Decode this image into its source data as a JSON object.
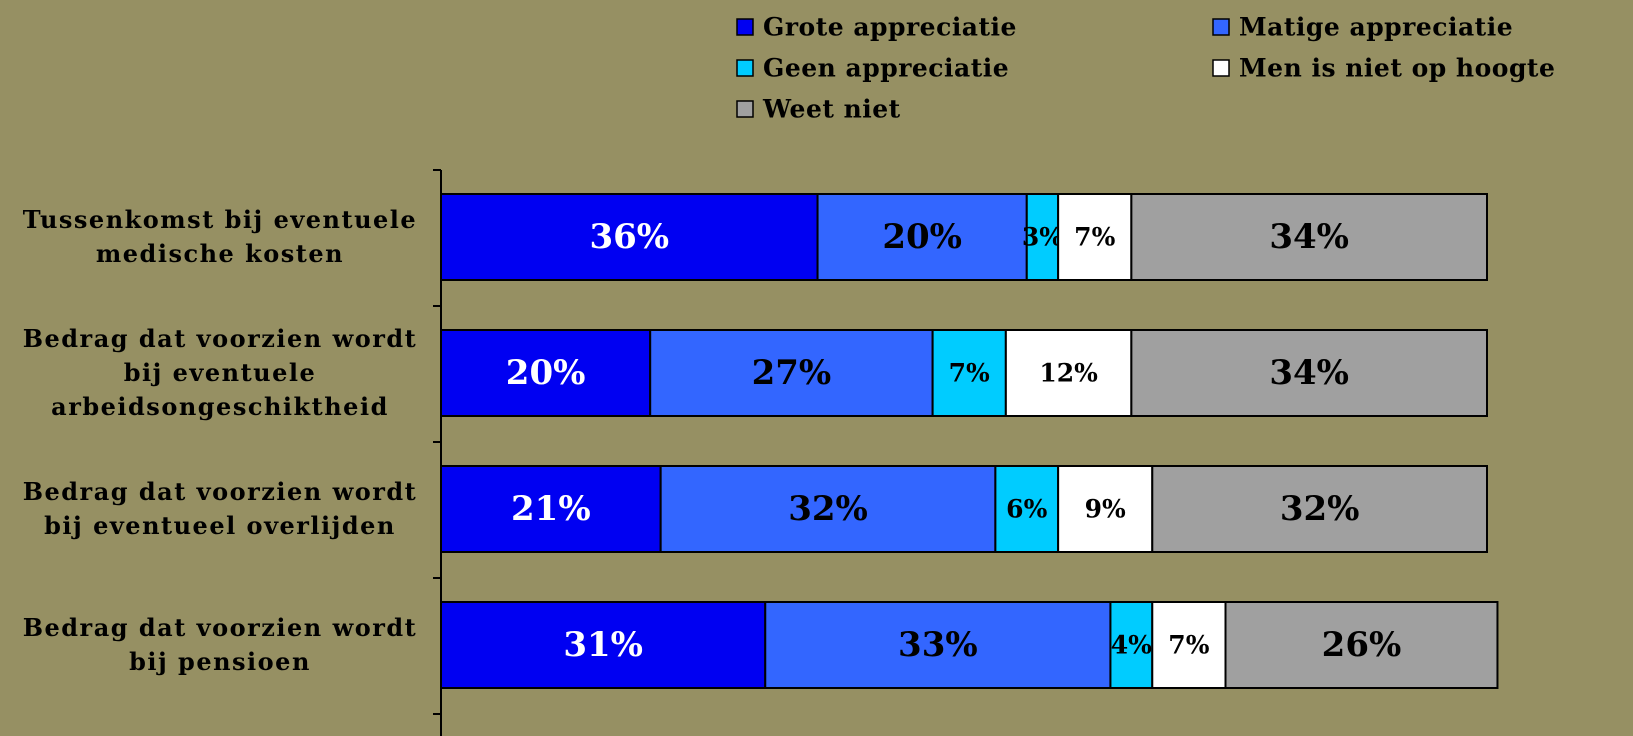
{
  "chart_data": {
    "type": "stacked-barh",
    "categories": [
      "Tussenkomst bij eventuele medische kosten",
      "Bedrag dat voorzien wordt bij eventuele arbeidsongeschiktheid",
      "Bedrag dat voorzien wordt bij eventueel overlijden",
      "Bedrag dat voorzien wordt bij pensioen"
    ],
    "xlim": [
      0,
      100
    ],
    "series": [
      {
        "name": "Grote appreciatie",
        "color": "#0000f2",
        "label_color": "#ffffff",
        "values": [
          36,
          20,
          21,
          31
        ],
        "value_labels": [
          "36%",
          "20%",
          "21%",
          "31%"
        ]
      },
      {
        "name": "Matige appreciatie",
        "color": "#3366ff",
        "label_color": "#000000",
        "values": [
          20,
          27,
          32,
          33
        ],
        "value_labels": [
          "20%",
          "27%",
          "32%",
          "33%"
        ]
      },
      {
        "name": "Geen appreciatie",
        "color": "#00ccff",
        "label_color": "#000000",
        "values": [
          3,
          7,
          6,
          4
        ],
        "value_labels": [
          "3%",
          "7%",
          "6%",
          "4%"
        ]
      },
      {
        "name": "Men is niet op hoogte",
        "color": "#ffffff",
        "label_color": "#000000",
        "values": [
          7,
          12,
          9,
          7
        ],
        "value_labels": [
          "7%",
          "12%",
          "9%",
          "7%"
        ]
      },
      {
        "name": "Weet niet",
        "color": "#a0a0a0",
        "label_color": "#000000",
        "values": [
          34,
          34,
          32,
          26
        ],
        "value_labels": [
          "34%",
          "34%",
          "32%",
          "26%"
        ]
      }
    ]
  }
}
